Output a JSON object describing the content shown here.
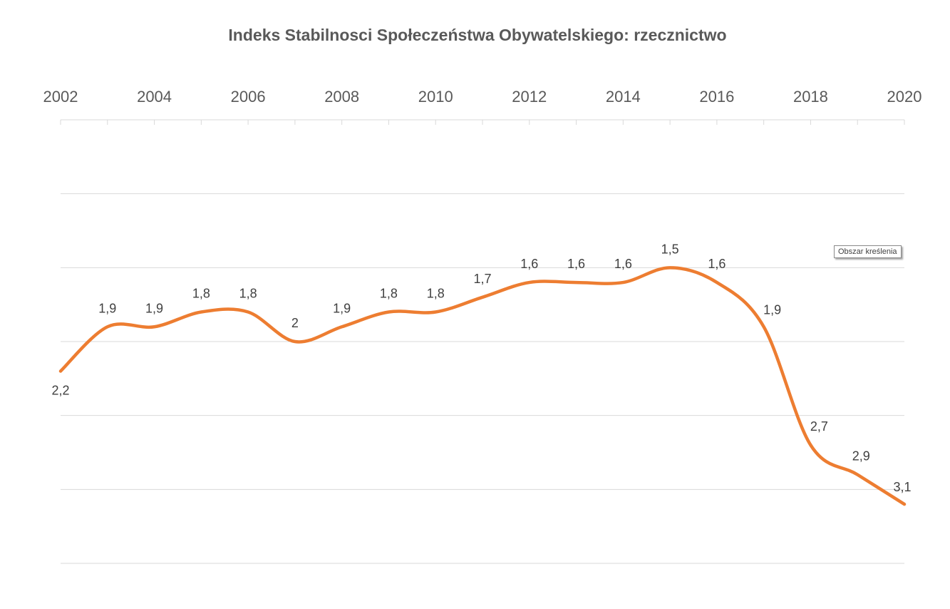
{
  "chart_data": {
    "type": "line",
    "title": "Indeks Stabilnosci Społeczeństwa Obywatelskiego: rzecznictwo",
    "x": [
      2002,
      2003,
      2004,
      2005,
      2006,
      2007,
      2008,
      2009,
      2010,
      2011,
      2012,
      2013,
      2014,
      2015,
      2016,
      2017,
      2018,
      2019,
      2020
    ],
    "x_tick_labels": [
      "2002",
      "2004",
      "2006",
      "2008",
      "2010",
      "2012",
      "2014",
      "2016",
      "2018",
      "2020"
    ],
    "series": [
      {
        "name": "rzecznictwo",
        "values": [
          2.2,
          1.9,
          1.9,
          1.8,
          1.8,
          2.0,
          1.9,
          1.8,
          1.8,
          1.7,
          1.6,
          1.6,
          1.6,
          1.5,
          1.6,
          1.9,
          2.7,
          2.9,
          3.1
        ],
        "labels": [
          "2,2",
          "1,9",
          "1,9",
          "1,8",
          "1,8",
          "2",
          "1,9",
          "1,8",
          "1,8",
          "1,7",
          "1,6",
          "1,6",
          "1,6",
          "1,5",
          "1,6",
          "1,9",
          "2,7",
          "2,9",
          "3,1"
        ],
        "color": "#ed7d31"
      }
    ],
    "y_axis_reversed": true,
    "ylim": [
      0.5,
      3.5
    ],
    "y_gridline_step": 0.5,
    "x_axis_position": "top",
    "gridlines": true,
    "legend": "none",
    "xlabel": "",
    "ylabel": ""
  },
  "overlay": {
    "tooltip_text": "Obszar kreślenia"
  },
  "colors": {
    "line": "#ed7d31",
    "grid": "#d9d9d9",
    "text": "#595959",
    "label": "#404040"
  }
}
